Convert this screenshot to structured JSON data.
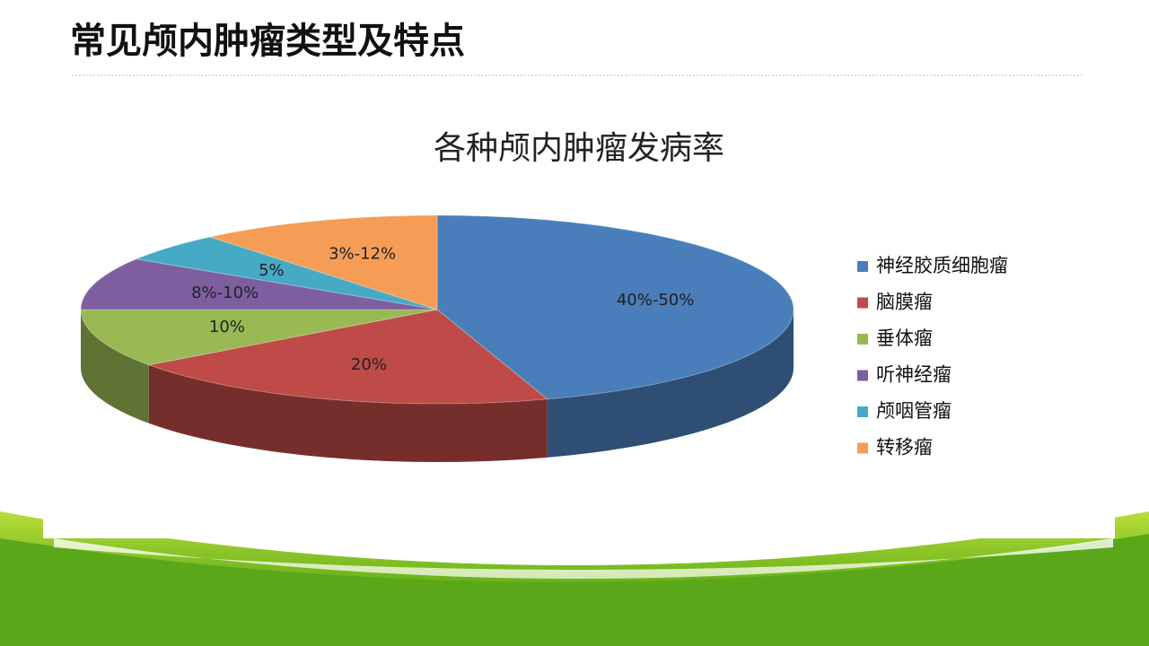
{
  "slide_title": "常见颅内肿瘤类型及特点",
  "chart_data": {
    "type": "pie",
    "title": "各种颅内肿瘤发病率",
    "categories": [
      "神经胶质细胞瘤",
      "脑膜瘤",
      "垂体瘤",
      "听神经瘤",
      "颅咽管瘤",
      "转移瘤"
    ],
    "values": [
      45,
      20,
      10,
      9,
      5,
      11
    ],
    "value_labels": [
      "40%-50%",
      "20%",
      "10%",
      "8%-10%",
      "5%",
      "3%-12%"
    ],
    "colors": [
      "#4a7ebb",
      "#be4b48",
      "#98b954",
      "#7d5fa0",
      "#46aac5",
      "#f59d56"
    ],
    "legend": "right"
  }
}
